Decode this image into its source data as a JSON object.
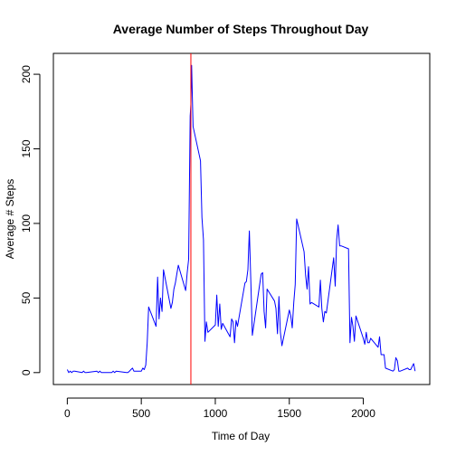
{
  "chart_data": {
    "type": "line",
    "title": "Average Number of Steps Throughout Day",
    "xlabel": "Time of Day",
    "ylabel": "Average # Steps",
    "xlim": [
      -94,
      2449
    ],
    "ylim": [
      -8,
      214
    ],
    "xticks": [
      0,
      500,
      1000,
      1500,
      2000
    ],
    "yticks": [
      0,
      50,
      100,
      150,
      200
    ],
    "grid": false,
    "legend": "none",
    "series": [
      {
        "color": "#0000FF",
        "x": [
          0,
          10,
          20,
          30,
          40,
          50,
          100,
          110,
          120,
          130,
          200,
          210,
          220,
          230,
          300,
          310,
          320,
          330,
          400,
          410,
          420,
          430,
          440,
          450,
          500,
          510,
          520,
          530,
          540,
          550,
          600,
          610,
          620,
          630,
          640,
          650,
          700,
          710,
          720,
          730,
          740,
          750,
          800,
          810,
          820,
          830,
          835,
          840,
          845,
          850,
          900,
          910,
          920,
          930,
          940,
          950,
          1000,
          1010,
          1020,
          1030,
          1040,
          1050,
          1100,
          1110,
          1120,
          1130,
          1140,
          1150,
          1200,
          1210,
          1220,
          1230,
          1240,
          1250,
          1300,
          1310,
          1320,
          1330,
          1340,
          1350,
          1400,
          1410,
          1420,
          1430,
          1440,
          1450,
          1500,
          1510,
          1520,
          1530,
          1540,
          1550,
          1600,
          1610,
          1620,
          1630,
          1640,
          1650,
          1700,
          1710,
          1720,
          1730,
          1740,
          1750,
          1800,
          1810,
          1820,
          1830,
          1840,
          1850,
          1900,
          1910,
          1920,
          1930,
          1940,
          1950,
          2000,
          2010,
          2020,
          2030,
          2040,
          2050,
          2100,
          2110,
          2120,
          2130,
          2140,
          2150,
          2200,
          2210,
          2220,
          2230,
          2240,
          2250,
          2300,
          2310,
          2320,
          2330,
          2340,
          2350
        ],
        "y": [
          2,
          0,
          1,
          0,
          1,
          1,
          0,
          1,
          0,
          0,
          1,
          0,
          1,
          0,
          0,
          1,
          0,
          1,
          0,
          0,
          1,
          2,
          3,
          1,
          1,
          3,
          2,
          5,
          20,
          44,
          31,
          64,
          36,
          50,
          41,
          69,
          43,
          47,
          56,
          60,
          66,
          72,
          55,
          67,
          76,
          172,
          180,
          206,
          185,
          165,
          142,
          104,
          89,
          21,
          34,
          27,
          32,
          52,
          31,
          46,
          29,
          33,
          24,
          36,
          34,
          20,
          35,
          31,
          60,
          61,
          69,
          95,
          62,
          25,
          59,
          66,
          67,
          41,
          30,
          56,
          48,
          43,
          26,
          51,
          27,
          18,
          42,
          38,
          30,
          47,
          59,
          103,
          81,
          65,
          56,
          71,
          46,
          47,
          44,
          62,
          43,
          34,
          41,
          40,
          77,
          58,
          89,
          99,
          85,
          85,
          83,
          20,
          37,
          31,
          21,
          38,
          23,
          19,
          27,
          20,
          20,
          23,
          17,
          24,
          12,
          12,
          12,
          3,
          1,
          2,
          10,
          8,
          1,
          1,
          3,
          2,
          2,
          4,
          6,
          1
        ]
      }
    ],
    "annotations": [
      {
        "type": "vline",
        "x": 835,
        "color": "#FF0000"
      }
    ]
  }
}
